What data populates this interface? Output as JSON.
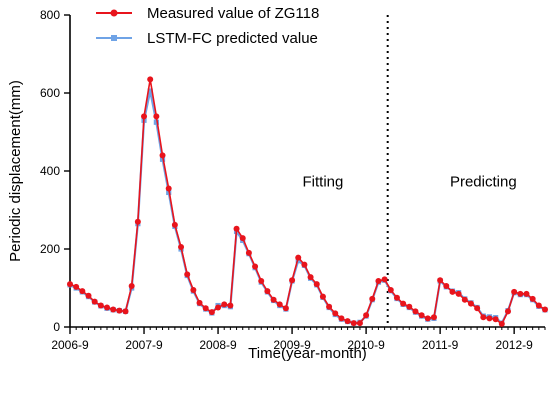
{
  "chart_data": {
    "type": "line",
    "xlabel": "Time(year-month)",
    "ylabel": "Periodic displacement(mm)",
    "ylim": [
      0,
      800
    ],
    "yticks": [
      0,
      200,
      400,
      600,
      800
    ],
    "xlim": [
      0,
      77
    ],
    "xticks": [
      {
        "index": 0,
        "label": "2006-9"
      },
      {
        "index": 12,
        "label": "2007-9"
      },
      {
        "index": 24,
        "label": "2008-9"
      },
      {
        "index": 36,
        "label": "2009-9"
      },
      {
        "index": 48,
        "label": "2010-9"
      },
      {
        "index": 60,
        "label": "2011-9"
      },
      {
        "index": 72,
        "label": "2012-9"
      }
    ],
    "annotations": [
      {
        "text": "Fitting",
        "x": 41,
        "y": 360
      },
      {
        "text": "Predicting",
        "x": 67,
        "y": 360
      }
    ],
    "divider_x": 51.5,
    "legend_position": "top-left",
    "series": [
      {
        "name": "Measured value of ZG118",
        "color": "#e8141c",
        "marker": "circle",
        "values": [
          110,
          103,
          92,
          80,
          65,
          55,
          50,
          45,
          42,
          40,
          105,
          270,
          540,
          635,
          540,
          440,
          355,
          262,
          205,
          135,
          95,
          62,
          48,
          38,
          50,
          58,
          55,
          252,
          228,
          190,
          155,
          118,
          92,
          70,
          58,
          48,
          120,
          178,
          160,
          128,
          110,
          78,
          52,
          35,
          22,
          15,
          10,
          10,
          30,
          72,
          118,
          122,
          95,
          75,
          60,
          52,
          40,
          30,
          22,
          25,
          120,
          105,
          90,
          85,
          70,
          60,
          48,
          25,
          22,
          20,
          8,
          40,
          90,
          85,
          85,
          72,
          55,
          45
        ]
      },
      {
        "name": "LSTM-FC predicted value",
        "color": "#6fa3e6",
        "marker": "square",
        "values": [
          108,
          100,
          90,
          78,
          64,
          54,
          48,
          44,
          42,
          40,
          100,
          265,
          530,
          605,
          525,
          430,
          345,
          258,
          200,
          132,
          92,
          60,
          46,
          36,
          55,
          55,
          52,
          245,
          222,
          188,
          152,
          115,
          90,
          68,
          55,
          46,
          118,
          170,
          158,
          125,
          108,
          76,
          50,
          32,
          20,
          14,
          10,
          12,
          28,
          70,
          115,
          120,
          93,
          73,
          58,
          50,
          38,
          28,
          20,
          22,
          118,
          103,
          92,
          88,
          72,
          62,
          50,
          28,
          26,
          24,
          10,
          42,
          88,
          83,
          83,
          70,
          53,
          44
        ]
      }
    ]
  }
}
